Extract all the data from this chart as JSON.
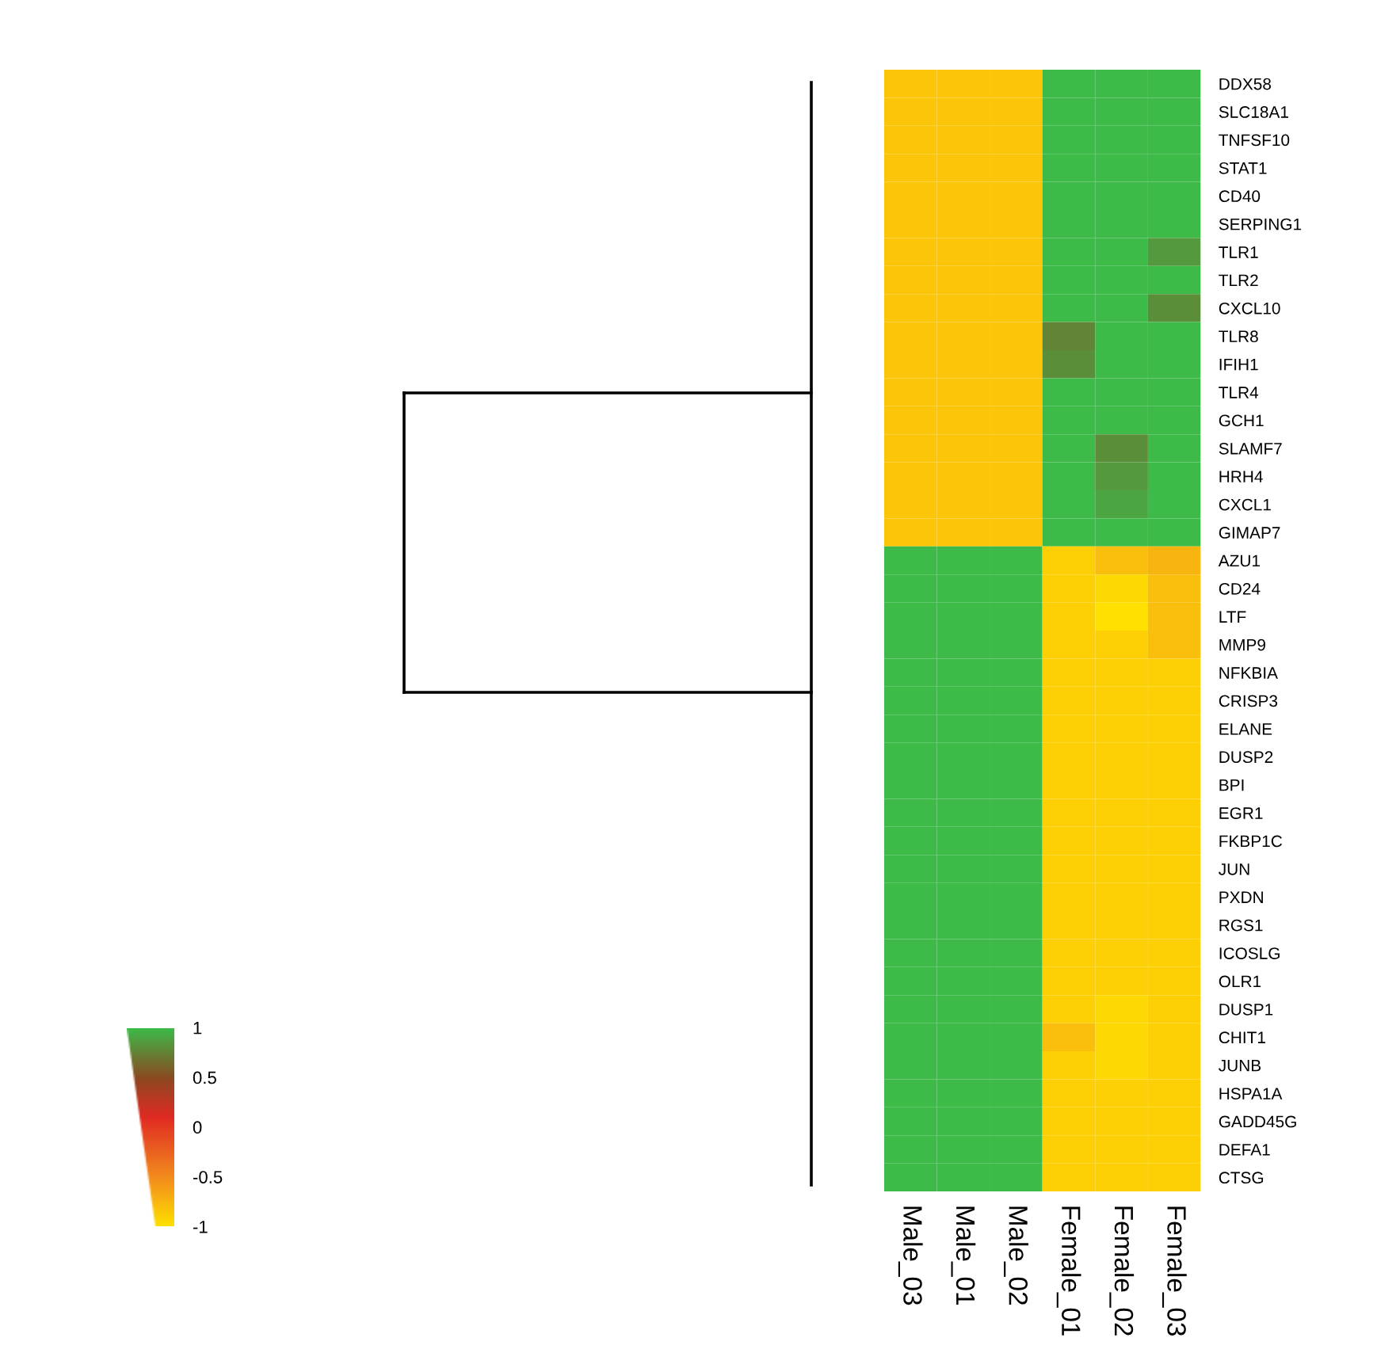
{
  "chart_data": {
    "type": "heatmap",
    "categories": [
      "Male_03",
      "Male_01",
      "Male_02",
      "Female_01",
      "Female_02",
      "Female_03"
    ],
    "y_categories": [
      "DDX58",
      "SLC18A1",
      "TNFSF10",
      "STAT1",
      "CD40",
      "SERPING1",
      "TLR1",
      "TLR2",
      "CXCL10",
      "TLR8",
      "IFIH1",
      "TLR4",
      "GCH1",
      "SLAMF7",
      "HRH4",
      "CXCL1",
      "GIMAP7",
      "AZU1",
      "CD24",
      "LTF",
      "MMP9",
      "NFKBIA",
      "CRISP3",
      "ELANE",
      "DUSP2",
      "BPI",
      "EGR1",
      "FKBP1C",
      "JUN",
      "PXDN",
      "RGS1",
      "ICOSLG",
      "OLR1",
      "DUSP1",
      "CHIT1",
      "JUNB",
      "HSPA1A",
      "GADD45G",
      "DEFA1",
      "CTSG"
    ],
    "cells": [
      [
        -0.85,
        -0.85,
        -0.85,
        1,
        1,
        1
      ],
      [
        -0.85,
        -0.85,
        -0.85,
        1,
        1,
        1
      ],
      [
        -0.85,
        -0.85,
        -0.85,
        1,
        1,
        1
      ],
      [
        -0.85,
        -0.85,
        -0.85,
        1,
        1,
        1
      ],
      [
        -0.85,
        -0.85,
        -0.85,
        1,
        1,
        1
      ],
      [
        -0.85,
        -0.85,
        -0.85,
        1,
        1,
        1
      ],
      [
        -0.85,
        -0.85,
        -0.85,
        1,
        1,
        0.85
      ],
      [
        -0.85,
        -0.85,
        -0.85,
        1,
        1,
        1
      ],
      [
        -0.85,
        -0.85,
        -0.85,
        1,
        1,
        0.8
      ],
      [
        -0.85,
        -0.85,
        -0.85,
        0.75,
        1,
        1
      ],
      [
        -0.85,
        -0.85,
        -0.85,
        0.8,
        1,
        1
      ],
      [
        -0.85,
        -0.85,
        -0.85,
        1,
        1,
        1
      ],
      [
        -0.85,
        -0.85,
        -0.85,
        1,
        1,
        1
      ],
      [
        -0.85,
        -0.85,
        -0.85,
        1,
        0.8,
        1
      ],
      [
        -0.85,
        -0.85,
        -0.85,
        1,
        0.85,
        1
      ],
      [
        -0.85,
        -0.85,
        -0.85,
        1,
        0.9,
        1
      ],
      [
        -0.85,
        -0.85,
        -0.85,
        1,
        1,
        1
      ],
      [
        1,
        1,
        1,
        -0.9,
        -0.8,
        -0.75
      ],
      [
        1,
        1,
        1,
        -0.9,
        -0.95,
        -0.8
      ],
      [
        1,
        1,
        1,
        -0.9,
        -1,
        -0.8
      ],
      [
        1,
        1,
        1,
        -0.9,
        -0.9,
        -0.8
      ],
      [
        1,
        1,
        1,
        -0.9,
        -0.9,
        -0.9
      ],
      [
        1,
        1,
        1,
        -0.9,
        -0.9,
        -0.9
      ],
      [
        1,
        1,
        1,
        -0.9,
        -0.9,
        -0.9
      ],
      [
        1,
        1,
        1,
        -0.9,
        -0.9,
        -0.9
      ],
      [
        1,
        1,
        1,
        -0.9,
        -0.9,
        -0.9
      ],
      [
        1,
        1,
        1,
        -0.9,
        -0.9,
        -0.9
      ],
      [
        1,
        1,
        1,
        -0.9,
        -0.9,
        -0.9
      ],
      [
        1,
        1,
        1,
        -0.9,
        -0.9,
        -0.9
      ],
      [
        1,
        1,
        1,
        -0.9,
        -0.9,
        -0.9
      ],
      [
        1,
        1,
        1,
        -0.9,
        -0.9,
        -0.9
      ],
      [
        1,
        1,
        1,
        -0.9,
        -0.9,
        -0.9
      ],
      [
        1,
        1,
        1,
        -0.9,
        -0.9,
        -0.9
      ],
      [
        1,
        1,
        1,
        -0.9,
        -0.95,
        -0.9
      ],
      [
        1,
        1,
        1,
        -0.8,
        -0.95,
        -0.9
      ],
      [
        1,
        1,
        1,
        -0.9,
        -0.95,
        -0.9
      ],
      [
        1,
        1,
        1,
        -0.9,
        -0.9,
        -0.9
      ],
      [
        1,
        1,
        1,
        -0.9,
        -0.9,
        -0.9
      ],
      [
        1,
        1,
        1,
        -0.9,
        -0.9,
        -0.9
      ],
      [
        1,
        1,
        1,
        -0.9,
        -0.9,
        -0.9
      ]
    ],
    "clim": [
      -1,
      1
    ],
    "cticks": [
      1,
      0.5,
      0,
      -0.5,
      -1
    ]
  }
}
